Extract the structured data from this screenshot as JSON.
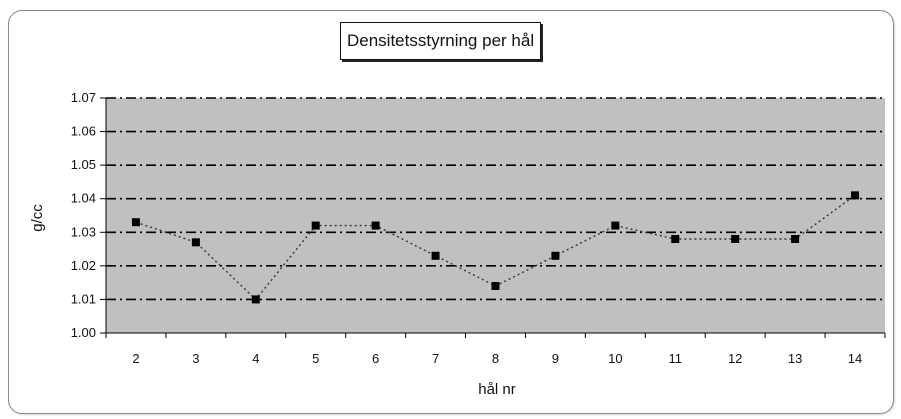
{
  "chart_data": {
    "type": "line",
    "title": "Densitetsstyrning per hål",
    "xlabel": "hål nr",
    "ylabel": "g/cc",
    "categories": [
      "2",
      "3",
      "4",
      "5",
      "6",
      "7",
      "8",
      "9",
      "10",
      "11",
      "12",
      "13",
      "14"
    ],
    "series": [
      {
        "values": [
          1.033,
          1.027,
          1.01,
          1.032,
          1.032,
          1.023,
          1.014,
          1.023,
          1.032,
          1.028,
          1.028,
          1.028,
          1.041
        ]
      }
    ],
    "ylim": [
      1.0,
      1.07
    ],
    "yticks": [
      "1.00",
      "1.01",
      "1.02",
      "1.03",
      "1.04",
      "1.05",
      "1.06",
      "1.07"
    ],
    "grid": true,
    "legend": "none",
    "colors": {
      "plot_background": "#c0c0c0",
      "gridline": "#000000",
      "series_line": "#333333",
      "marker": "#000000"
    }
  }
}
